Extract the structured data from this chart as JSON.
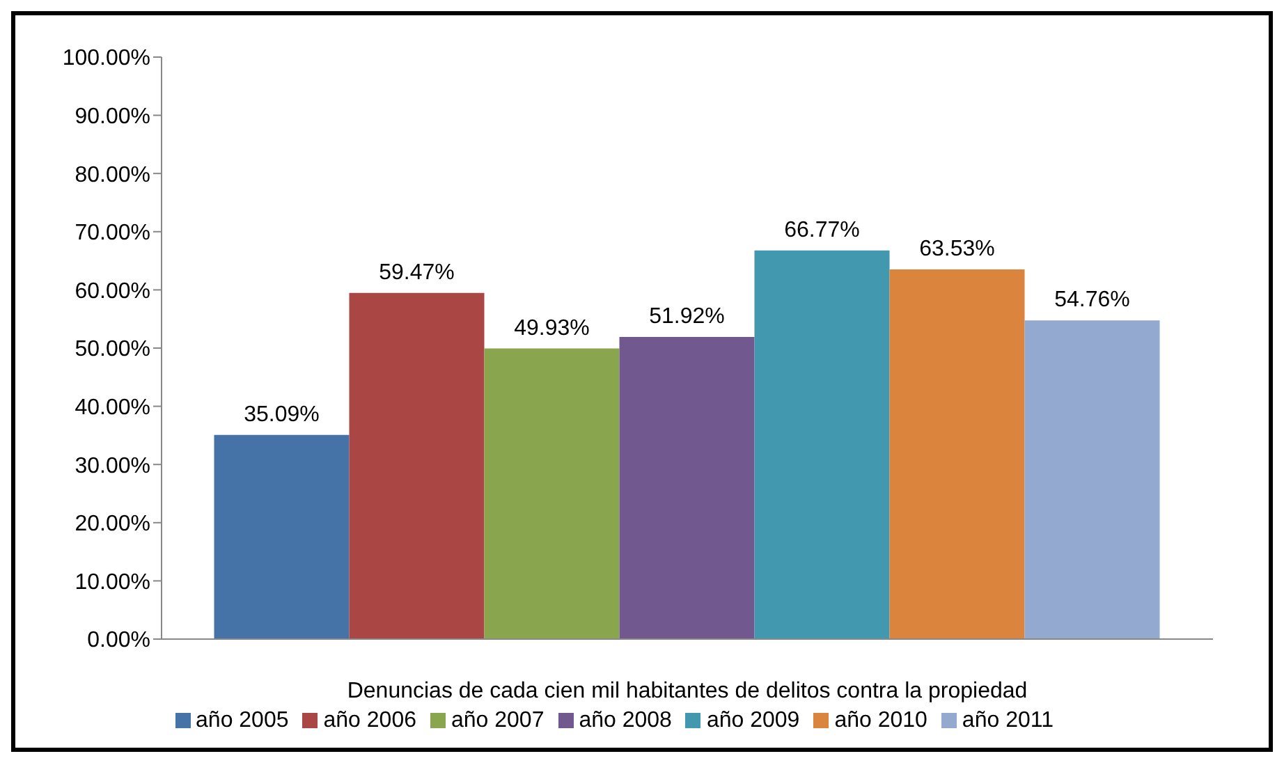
{
  "chart_data": {
    "type": "bar",
    "xlabel": "Denuncias de cada cien mil habitantes de delitos contra la propiedad",
    "categories": [
      null
    ],
    "series": [
      {
        "name": "año 2005",
        "color": "#4572a7",
        "values": [
          35.09
        ],
        "value_labels": [
          "35.09%"
        ]
      },
      {
        "name": "año 2006",
        "color": "#aa4643",
        "values": [
          59.47
        ],
        "value_labels": [
          "59.47%"
        ]
      },
      {
        "name": "año 2007",
        "color": "#89a54e",
        "values": [
          49.93
        ],
        "value_labels": [
          "49.93%"
        ]
      },
      {
        "name": "año 2008",
        "color": "#71588f",
        "values": [
          51.92
        ],
        "value_labels": [
          "51.92%"
        ]
      },
      {
        "name": "año 2009",
        "color": "#4198af",
        "values": [
          66.77
        ],
        "value_labels": [
          "66.77%"
        ]
      },
      {
        "name": "año 2010",
        "color": "#db843d",
        "values": [
          63.53
        ],
        "value_labels": [
          "63.53%"
        ]
      },
      {
        "name": "año 2011",
        "color": "#93a9cf",
        "values": [
          54.76
        ],
        "value_labels": [
          "54.76%"
        ]
      }
    ],
    "ylim": [
      0,
      100
    ],
    "yticks": [
      {
        "value": 0,
        "label": "0.00%"
      },
      {
        "value": 10,
        "label": "10.00%"
      },
      {
        "value": 20,
        "label": "20.00%"
      },
      {
        "value": 30,
        "label": "30.00%"
      },
      {
        "value": 40,
        "label": "40.00%"
      },
      {
        "value": 50,
        "label": "50.00%"
      },
      {
        "value": 60,
        "label": "60.00%"
      },
      {
        "value": 70,
        "label": "70.00%"
      },
      {
        "value": 80,
        "label": "80.00%"
      },
      {
        "value": 90,
        "label": "90.00%"
      },
      {
        "value": 100,
        "label": "100.00%"
      }
    ],
    "legend": "bottom",
    "grid": false
  }
}
